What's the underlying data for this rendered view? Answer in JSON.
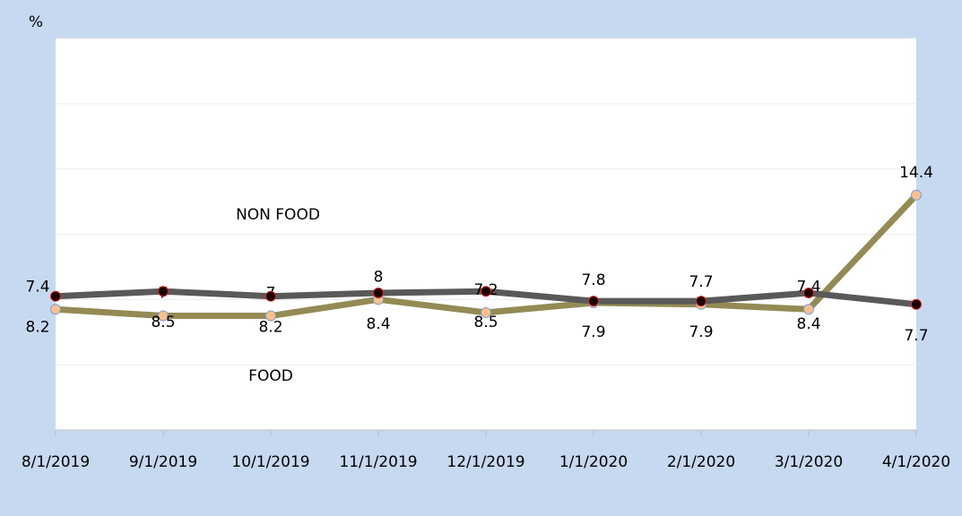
{
  "chart_data": {
    "type": "line",
    "y_label": "%",
    "categories": [
      "8/1/2019",
      "9/1/2019",
      "10/1/2019",
      "11/1/2019",
      "12/1/2019",
      "1/1/2020",
      "2/1/2020",
      "3/1/2020",
      "4/1/2020"
    ],
    "series": [
      {
        "name": "NON FOOD",
        "color": "#948a54",
        "values": [
          7.4,
          7.0,
          7.0,
          8.0,
          7.2,
          7.8,
          7.7,
          7.4,
          14.4
        ]
      },
      {
        "name": "FOOD",
        "color": "#595959",
        "values": [
          8.2,
          8.5,
          8.2,
          8.4,
          8.5,
          7.9,
          7.9,
          8.4,
          7.7
        ]
      }
    ],
    "ylim": [
      0,
      24
    ],
    "yticks": [
      0,
      4,
      8,
      12,
      16,
      20,
      24
    ],
    "grid": true
  }
}
